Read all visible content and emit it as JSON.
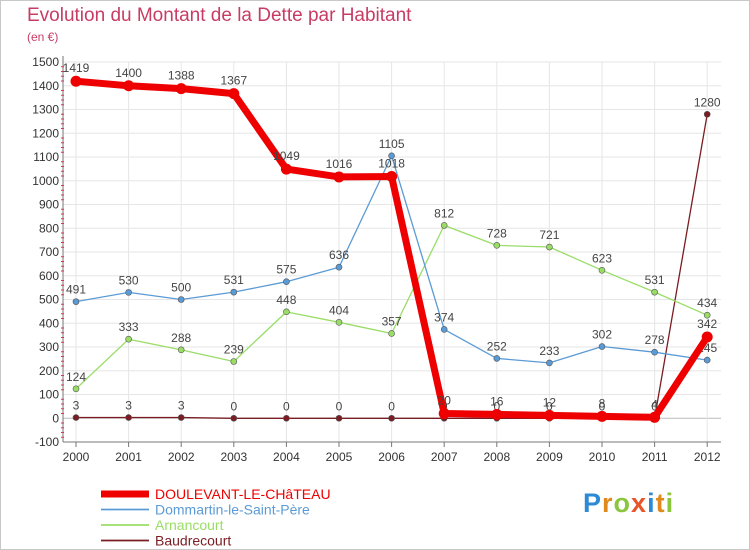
{
  "title": "Evolution du Montant de la Dette par Habitant",
  "unit_label": "(en €)",
  "logo": {
    "letters": [
      {
        "ch": "P",
        "color": "#2d8bd6"
      },
      {
        "ch": "r",
        "color": "#e08a1e"
      },
      {
        "ch": "o",
        "color": "#8cc63f"
      },
      {
        "ch": "x",
        "color": "#e8542a"
      },
      {
        "ch": "i",
        "color": "#2d8bd6"
      },
      {
        "ch": "t",
        "color": "#e08a1e"
      },
      {
        "ch": "i",
        "color": "#8cc63f"
      }
    ]
  },
  "chart_data": {
    "type": "line",
    "title": "Evolution du Montant de la Dette par Habitant",
    "ylabel": "(en €)",
    "xlabel": "",
    "ylim": [
      -100,
      1500
    ],
    "y_ticks": [
      -100,
      0,
      100,
      200,
      300,
      400,
      500,
      600,
      700,
      800,
      900,
      1000,
      1100,
      1200,
      1300,
      1400,
      1500
    ],
    "x": [
      "2000",
      "2001",
      "2002",
      "2003",
      "2004",
      "2005",
      "2006",
      "2007",
      "2008",
      "2009",
      "2010",
      "2011",
      "2012"
    ],
    "grid": true,
    "legend_position": "bottom-left",
    "series": [
      {
        "name": "Baudrecourt",
        "color": "#7a1c22",
        "values": [
          3,
          3,
          3,
          0,
          0,
          0,
          0,
          0,
          0,
          0,
          0,
          0,
          1280
        ],
        "labels": [
          "3",
          "3",
          "3",
          "0",
          "0",
          "0",
          "0",
          "0",
          "0",
          "0",
          "0",
          "0",
          "1280"
        ]
      },
      {
        "name": "Arnancourt",
        "color": "#99dd66",
        "values": [
          124,
          333,
          288,
          239,
          448,
          404,
          357,
          812,
          728,
          721,
          623,
          531,
          434
        ],
        "labels": [
          "124",
          "333",
          "288",
          "239",
          "448",
          "404",
          "357",
          "812",
          "728",
          "721",
          "623",
          "531",
          "434"
        ]
      },
      {
        "name": "Dommartin-le-Saint-Père",
        "color": "#5b9bd5",
        "values": [
          491,
          530,
          500,
          531,
          575,
          636,
          1105,
          374,
          252,
          233,
          302,
          278,
          245
        ],
        "labels": [
          "491",
          "530",
          "500",
          "531",
          "575",
          "636",
          "1105",
          "374",
          "252",
          "233",
          "302",
          "278",
          "245"
        ]
      },
      {
        "name": "DOULEVANT-LE-CHâTEAU",
        "color": "#ee0000",
        "values": [
          1419,
          1400,
          1388,
          1367,
          1049,
          1016,
          1018,
          20,
          16,
          12,
          8,
          4,
          342
        ],
        "labels": [
          "1419",
          "1400",
          "1388",
          "1367",
          "1049",
          "1016",
          "1018",
          "20",
          "16",
          "12",
          "8",
          "4",
          "342"
        ]
      }
    ],
    "legend_order": [
      "DOULEVANT-LE-CHâTEAU",
      "Dommartin-le-Saint-Père",
      "Arnancourt",
      "Baudrecourt"
    ]
  }
}
